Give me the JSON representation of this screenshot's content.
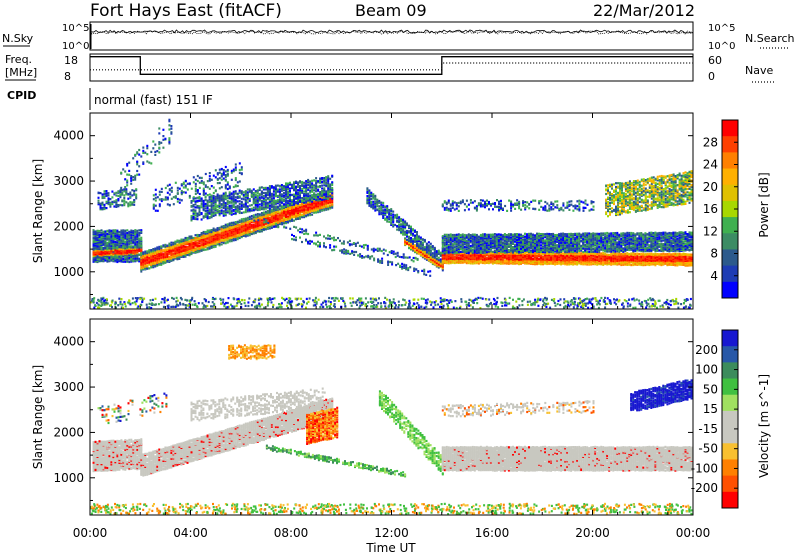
{
  "header": {
    "station": "Fort Hays East (fitACF)",
    "beam": "Beam 09",
    "date": "22/Mar/2012"
  },
  "noise_panel": {
    "left_label": "N.Sky",
    "right_label": "N.Search",
    "left_ticks": [
      "10^5",
      "10^0"
    ],
    "right_ticks": [
      "10^5",
      "10^0"
    ]
  },
  "freq_panel": {
    "left_label_1": "Freq.",
    "left_label_2": "[MHz]",
    "right_label": "Nave",
    "left_ticks": [
      "18",
      "8"
    ],
    "right_ticks": [
      "60",
      "0"
    ]
  },
  "cpid": {
    "label": "CPID",
    "mode": "normal (fast) 151 IF"
  },
  "x_axis": {
    "label": "Time UT",
    "ticks": [
      "00:00",
      "04:00",
      "08:00",
      "12:00",
      "16:00",
      "20:00",
      "00:00"
    ]
  },
  "power_colorbar": {
    "label": "Power [dB]",
    "ticks": [
      "28",
      "24",
      "20",
      "16",
      "12",
      "8",
      "4"
    ],
    "colors": [
      "#ff0000",
      "#ff4000",
      "#ff8000",
      "#ffb000",
      "#e0c000",
      "#a8d800",
      "#40b050",
      "#3c8c64",
      "#2c5a8c",
      "#1e3cb4",
      "#0000ff"
    ]
  },
  "velocity_colorbar": {
    "label": "Velocity [m s^-1]",
    "ticks": [
      "200",
      "100",
      "50",
      "15",
      "-15",
      "-50",
      "-100",
      "-200"
    ],
    "colors": [
      "#1818d0",
      "#2858a8",
      "#3c8c5c",
      "#40c040",
      "#a0e060",
      "#c8c8c0",
      "#c8c8c0",
      "#f8c030",
      "#ff8000",
      "#ff5000",
      "#ff0000"
    ]
  },
  "chart_data": [
    {
      "type": "heatmap",
      "title": "Power",
      "xlabel": "Time UT",
      "ylabel": "Slant Range [km]",
      "y_ticks": [
        "1000",
        "2000",
        "3000",
        "4000"
      ],
      "x_range_hours": [
        0,
        24
      ],
      "ylim": [
        180,
        4500
      ],
      "colorbar_label": "Power [dB]",
      "features": [
        {
          "name": "early ground scatter band",
          "t": [
            0,
            2
          ],
          "range_km": [
            1300,
            1900
          ],
          "level_db": 20
        },
        {
          "name": "rising scatter band",
          "t": [
            2,
            9.5
          ],
          "range_km_start": 1200,
          "range_km_end": 2700,
          "level_db": 16
        },
        {
          "name": "convergent scatter near noon",
          "t": [
            10,
            14
          ],
          "range_km_start": 2800,
          "range_km_end": 1100,
          "level_db": 12
        },
        {
          "name": "afternoon ground scatter",
          "t": [
            14,
            24
          ],
          "range_km": [
            1150,
            1600
          ],
          "level_db": 28
        },
        {
          "name": "evening high-range echoes",
          "t": [
            20.5,
            24
          ],
          "range_km": [
            2500,
            3300
          ],
          "level_db": 16
        }
      ]
    },
    {
      "type": "heatmap",
      "title": "Velocity",
      "xlabel": "Time UT",
      "ylabel": "Slant Range [km]",
      "y_ticks": [
        "1000",
        "2000",
        "3000",
        "4000"
      ],
      "x_range_hours": [
        0,
        24
      ],
      "ylim": [
        180,
        4500
      ],
      "colorbar_label": "Velocity [m s^-1]",
      "features": [
        {
          "name": "ground scatter (grey)",
          "t": [
            0,
            24
          ],
          "range_km": [
            1100,
            2700
          ],
          "velocity_ms": 0
        },
        {
          "name": "negative velocity echoes",
          "t": [
            8.5,
            10
          ],
          "range_km": [
            1800,
            2600
          ],
          "velocity_ms": -100
        },
        {
          "name": "green slanted echoes",
          "t": [
            11,
            14
          ],
          "range_km": [
            1200,
            3200
          ],
          "velocity_ms": 50
        },
        {
          "name": "blue positive echoes",
          "t": [
            21.5,
            24
          ],
          "range_km": [
            2600,
            3100
          ],
          "velocity_ms": 200
        }
      ]
    },
    {
      "type": "line",
      "title": "Frequency / Nave",
      "series": [
        {
          "name": "Freq.",
          "x": [
            0,
            2,
            2,
            14,
            14,
            24
          ],
          "values": [
            17,
            17,
            10.5,
            10.5,
            17,
            17
          ]
        },
        {
          "name": "Nave",
          "x": [
            0,
            2,
            2,
            14,
            14,
            24
          ],
          "values": [
            25,
            25,
            25,
            25,
            40,
            40
          ]
        }
      ],
      "ylim": [
        8,
        18
      ]
    },
    {
      "type": "line",
      "title": "Noise",
      "series": [
        {
          "name": "N.Sky",
          "x": [
            0,
            6,
            12,
            18,
            24
          ],
          "values": [
            3.2,
            3.0,
            2.9,
            3.0,
            3.2
          ]
        },
        {
          "name": "N.Search",
          "x": [
            0,
            6,
            12,
            18,
            24
          ],
          "values": [
            3.0,
            2.9,
            2.8,
            2.9,
            3.0
          ]
        }
      ],
      "ylim": [
        0,
        5
      ]
    }
  ]
}
